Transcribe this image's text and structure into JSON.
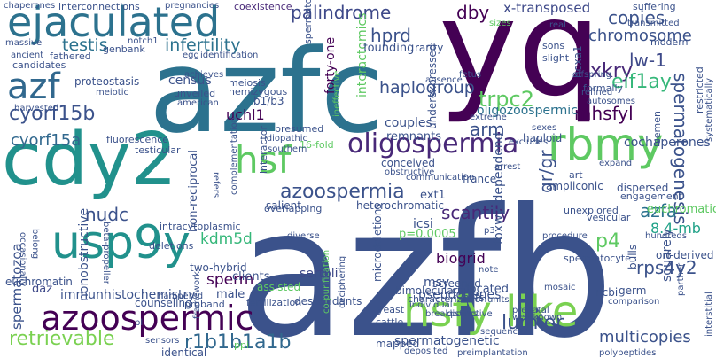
{
  "words": [
    {
      "text": "azfb",
      "color": "#3b528b"
    },
    {
      "text": "azfc",
      "color": "#2c728e"
    },
    {
      "text": "yq",
      "color": "#440154"
    },
    {
      "text": "cdy2",
      "color": "#21918c"
    },
    {
      "text": "ejaculated",
      "color": "#2c728e"
    },
    {
      "text": "hsfy like",
      "color": "#7ad151"
    },
    {
      "text": "azoospermic",
      "color": "#440154"
    },
    {
      "text": "rbmy",
      "color": "#5ec962"
    },
    {
      "text": "usp9y",
      "color": "#21918c"
    },
    {
      "text": "hsf",
      "color": "#5ec962"
    },
    {
      "text": "oligospermia",
      "color": "#482878"
    },
    {
      "text": "azf",
      "color": "#31688e"
    },
    {
      "text": "azoospermia",
      "color": "#3b528b"
    },
    {
      "text": "spermatogenesis",
      "color": "#3b528b"
    },
    {
      "text": "palindrome",
      "color": "#3e4989"
    },
    {
      "text": "infertility",
      "color": "#2c728e"
    },
    {
      "text": "testis",
      "color": "#2c728e"
    },
    {
      "text": "dby",
      "color": "#440154"
    },
    {
      "text": "hprd",
      "color": "#3b528b"
    },
    {
      "text": "copies",
      "color": "#3b528b"
    },
    {
      "text": "chromosome",
      "color": "#3b528b"
    },
    {
      "text": "xkry",
      "color": "#482878"
    },
    {
      "text": "lw-1",
      "color": "#3e4989"
    },
    {
      "text": "eif1ay",
      "color": "#35b779"
    },
    {
      "text": "x-transposed",
      "color": "#3e4989"
    },
    {
      "text": "haplogroup",
      "color": "#3b528b"
    },
    {
      "text": "trpc2",
      "color": "#5ec962"
    },
    {
      "text": "mhsfyl",
      "color": "#440154"
    },
    {
      "text": "cyorf15b",
      "color": "#3b528b"
    },
    {
      "text": "cyorf15a",
      "color": "#31688e"
    },
    {
      "text": "arm",
      "color": "#3b528b"
    },
    {
      "text": "scantily",
      "color": "#482878"
    },
    {
      "text": "gr/gr",
      "color": "#3b528b"
    },
    {
      "text": "rps4y2",
      "color": "#3b528b"
    },
    {
      "text": "retrievable",
      "color": "#7ad151"
    },
    {
      "text": "r1b1b1a1b",
      "color": "#31688e"
    },
    {
      "text": "lumier",
      "color": "#3b528b"
    },
    {
      "text": "multicopies",
      "color": "#3b528b"
    },
    {
      "text": "spermatogenetic",
      "color": "#3b528b"
    },
    {
      "text": "immunhistochemistry",
      "color": "#3b528b"
    },
    {
      "text": "sperm",
      "color": "#440154"
    },
    {
      "text": "nudc",
      "color": "#3b528b"
    },
    {
      "text": "kdm5d",
      "color": "#35b779"
    },
    {
      "text": "biogrid",
      "color": "#440154"
    },
    {
      "text": "sertoli",
      "color": "#3e4989"
    },
    {
      "text": "p4",
      "color": "#5ec962"
    },
    {
      "text": "azfa",
      "color": "#2c728e"
    },
    {
      "text": "8.4-mb",
      "color": "#1fa187"
    },
    {
      "text": "uchl1",
      "color": "#440154"
    },
    {
      "text": "oligozoospermic",
      "color": "#2c728e"
    },
    {
      "text": "interactomics",
      "color": "#5ec962"
    },
    {
      "text": "forty-one",
      "color": "#440154"
    },
    {
      "text": "spermatozoa",
      "color": "#3b528b"
    },
    {
      "text": "nonobstructive",
      "color": "#3b528b"
    },
    {
      "text": "euchromatin",
      "color": "#3b528b"
    },
    {
      "text": "daz",
      "color": "#3e4989"
    },
    {
      "text": "census",
      "color": "#3b528b"
    },
    {
      "text": "proteostasis",
      "color": "#3b528b"
    },
    {
      "text": "interconnections",
      "color": "#3b528b"
    },
    {
      "text": "coexistence",
      "color": "#482878"
    },
    {
      "text": "suffering",
      "color": "#3b528b"
    },
    {
      "text": "cochaperones",
      "color": "#3b528b"
    },
    {
      "text": "ampliconic",
      "color": "#3b528b"
    },
    {
      "text": "heterochromatic",
      "color": "#3b528b"
    },
    {
      "text": "azoospermia",
      "color": "#3b528b"
    },
    {
      "text": "non-reciprocal",
      "color": "#3b528b"
    },
    {
      "text": "remnants",
      "color": "#3b528b"
    },
    {
      "text": "couples",
      "color": "#3b528b"
    },
    {
      "text": "conceived",
      "color": "#3b528b"
    },
    {
      "text": "haploid",
      "color": "#3b528b"
    },
    {
      "text": "founding",
      "color": "#3b528b"
    },
    {
      "text": "rarity",
      "color": "#3b528b"
    },
    {
      "text": "sons",
      "color": "#3b528b"
    },
    {
      "text": "slight",
      "color": "#3b528b"
    },
    {
      "text": "underexpressed",
      "color": "#3b528b"
    },
    {
      "text": "hoxa1",
      "color": "#3b528b"
    },
    {
      "text": "formally",
      "color": "#3b528b"
    },
    {
      "text": "modern",
      "color": "#3b528b"
    },
    {
      "text": "restricted",
      "color": "#3b528b"
    },
    {
      "text": "semen",
      "color": "#3b528b"
    },
    {
      "text": "orf-derived",
      "color": "#3b528b"
    },
    {
      "text": "bulls",
      "color": "#3b528b"
    },
    {
      "text": "vesicular",
      "color": "#3b528b"
    },
    {
      "text": "dispersed",
      "color": "#3b528b"
    },
    {
      "text": "engagement",
      "color": "#3b528b"
    },
    {
      "text": "euchromatic",
      "color": "#5ec962"
    },
    {
      "text": "hundreds",
      "color": "#3b528b"
    },
    {
      "text": "spermatocyte",
      "color": "#3b528b"
    },
    {
      "text": "fbxw7-dependend",
      "color": "#3b528b"
    },
    {
      "text": "icsi",
      "color": "#3b528b"
    },
    {
      "text": "p=0.0005",
      "color": "#5ec962"
    },
    {
      "text": "ext1",
      "color": "#3b528b"
    },
    {
      "text": "france",
      "color": "#3b528b"
    },
    {
      "text": "unexplored",
      "color": "#3b528b"
    },
    {
      "text": "art",
      "color": "#3b528b"
    },
    {
      "text": "msy",
      "color": "#3b528b"
    },
    {
      "text": "screened",
      "color": "#3b528b"
    },
    {
      "text": "hsfs",
      "color": "#3b528b"
    },
    {
      "text": "bimolecular",
      "color": "#3b528b"
    },
    {
      "text": "cnv",
      "color": "#3b528b"
    },
    {
      "text": "characterization",
      "color": "#3b528b"
    },
    {
      "text": "pseudogenes",
      "color": "#3b528b"
    },
    {
      "text": "located",
      "color": "#3b528b"
    },
    {
      "text": "microdeletions",
      "color": "#3b528b"
    },
    {
      "text": "descendants",
      "color": "#3b528b"
    },
    {
      "text": "ncbi",
      "color": "#3b528b"
    },
    {
      "text": "germ",
      "color": "#3b528b"
    },
    {
      "text": "squarely",
      "color": "#3b528b"
    },
    {
      "text": "male",
      "color": "#3b528b"
    },
    {
      "text": "clients",
      "color": "#3b528b"
    },
    {
      "text": "two-hybrid",
      "color": "#3b528b"
    },
    {
      "text": "assisted",
      "color": "#5ec962"
    },
    {
      "text": "intracytoplasmic",
      "color": "#3b528b"
    },
    {
      "text": "deletions",
      "color": "#3b528b"
    },
    {
      "text": "salient",
      "color": "#3b528b"
    },
    {
      "text": "overlapping",
      "color": "#3b528b"
    },
    {
      "text": "interactor",
      "color": "#3b528b"
    },
    {
      "text": "16-fold",
      "color": "#5ec962"
    },
    {
      "text": "presumed",
      "color": "#3b528b"
    },
    {
      "text": "b1/b3",
      "color": "#3b528b"
    },
    {
      "text": "meiosis",
      "color": "#3b528b"
    },
    {
      "text": "hemizygous",
      "color": "#3b528b"
    },
    {
      "text": "unveiled",
      "color": "#3b528b"
    },
    {
      "text": "fluorescence",
      "color": "#3b528b"
    },
    {
      "text": "testicular",
      "color": "#3b528b"
    },
    {
      "text": "spermatogenic",
      "color": "#3b528b"
    },
    {
      "text": "genbank",
      "color": "#3b528b"
    },
    {
      "text": "fathered",
      "color": "#3b528b"
    },
    {
      "text": "candidates",
      "color": "#3b528b"
    },
    {
      "text": "massive",
      "color": "#3b528b"
    },
    {
      "text": "ancient",
      "color": "#3b528b"
    },
    {
      "text": "chaperones",
      "color": "#3b528b"
    },
    {
      "text": "pregnancies",
      "color": "#3b528b"
    },
    {
      "text": "identification",
      "color": "#3b528b"
    },
    {
      "text": "egg",
      "color": "#3b528b"
    },
    {
      "text": "notch1",
      "color": "#3b528b"
    },
    {
      "text": "achieves",
      "color": "#3b528b"
    },
    {
      "text": "american",
      "color": "#3b528b"
    },
    {
      "text": "meiotic",
      "color": "#3b528b"
    },
    {
      "text": "harvested",
      "color": "#3b528b"
    },
    {
      "text": "fertilization",
      "color": "#3b528b"
    },
    {
      "text": "proband",
      "color": "#3b528b"
    },
    {
      "text": "counseling",
      "color": "#3b528b"
    },
    {
      "text": "identical",
      "color": "#3b528b"
    },
    {
      "text": "ppi",
      "color": "#5ec962"
    },
    {
      "text": "yeast",
      "color": "#3b528b"
    },
    {
      "text": "cattle",
      "color": "#3b528b"
    },
    {
      "text": "mapped",
      "color": "#3b528b"
    },
    {
      "text": "deposited",
      "color": "#3b528b"
    },
    {
      "text": "preimplantation",
      "color": "#3b528b"
    },
    {
      "text": "sequences",
      "color": "#3b528b"
    },
    {
      "text": "polypeptides",
      "color": "#3b528b"
    },
    {
      "text": "prenatal",
      "color": "#3b528b"
    },
    {
      "text": "well-known",
      "color": "#3b528b"
    },
    {
      "text": "mosaic",
      "color": "#3b528b"
    },
    {
      "text": "comparison",
      "color": "#3b528b"
    },
    {
      "text": "partner",
      "color": "#3b528b"
    },
    {
      "text": "units",
      "color": "#3b528b"
    },
    {
      "text": "breakpoints",
      "color": "#3b528b"
    },
    {
      "text": "individual",
      "color": "#3b528b"
    },
    {
      "text": "distinctive",
      "color": "#3b528b"
    },
    {
      "text": "deciphering",
      "color": "#3b528b"
    },
    {
      "text": "co-purification",
      "color": "#5ec962"
    },
    {
      "text": "procedure",
      "color": "#3b528b"
    },
    {
      "text": "diverse",
      "color": "#3b528b"
    },
    {
      "text": "arrest",
      "color": "#3b528b"
    },
    {
      "text": "obstructive",
      "color": "#3b528b"
    },
    {
      "text": "communication",
      "color": "#3b528b"
    },
    {
      "text": "complementation",
      "color": "#3b528b"
    },
    {
      "text": "southern",
      "color": "#3b528b"
    },
    {
      "text": "idiopathic",
      "color": "#3b528b"
    },
    {
      "text": "beta-propeller",
      "color": "#3b528b"
    },
    {
      "text": "belong",
      "color": "#3b528b"
    },
    {
      "text": "hampered",
      "color": "#3b528b"
    },
    {
      "text": "framework",
      "color": "#3b528b"
    },
    {
      "text": "sensors",
      "color": "#3b528b"
    },
    {
      "text": "excludes",
      "color": "#3b528b"
    },
    {
      "text": "extreme",
      "color": "#3b528b"
    },
    {
      "text": "sexes",
      "color": "#3b528b"
    },
    {
      "text": "fetus",
      "color": "#3b528b"
    },
    {
      "text": "autosomes",
      "color": "#3b528b"
    },
    {
      "text": "offspring",
      "color": "#3b528b"
    },
    {
      "text": "transmitted",
      "color": "#3b528b"
    },
    {
      "text": "real",
      "color": "#3b528b"
    },
    {
      "text": "absence",
      "color": "#3b528b"
    },
    {
      "text": "refined",
      "color": "#3b528b"
    },
    {
      "text": "ineffective",
      "color": "#5ec962"
    },
    {
      "text": "systematically",
      "color": "#3b528b"
    },
    {
      "text": "interstitial",
      "color": "#3b528b"
    },
    {
      "text": "expand",
      "color": "#3b528b"
    },
    {
      "text": "occasionally",
      "color": "#3b528b"
    },
    {
      "text": "sizes",
      "color": "#5ec962"
    },
    {
      "text": "note",
      "color": "#3b528b"
    },
    {
      "text": "p3",
      "color": "#3b528b"
    },
    {
      "text": "refers",
      "color": "#3b528b"
    },
    {
      "text": "pl",
      "color": "#3b528b"
    }
  ]
}
